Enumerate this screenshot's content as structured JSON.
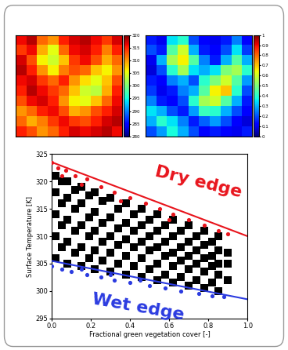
{
  "chart_data": [
    {
      "type": "heatmap",
      "tick_labels": false,
      "cells": [
        [
          316,
          318,
          312,
          310,
          315,
          317,
          318,
          316,
          314,
          317
        ],
        [
          314,
          316,
          309,
          305,
          312,
          316,
          317,
          315,
          311,
          315
        ],
        [
          317,
          313,
          306,
          304,
          308,
          314,
          316,
          313,
          309,
          312
        ],
        [
          318,
          315,
          310,
          306,
          311,
          313,
          312,
          308,
          306,
          310
        ],
        [
          316,
          317,
          314,
          312,
          315,
          310,
          307,
          305,
          308,
          313
        ],
        [
          315,
          318,
          316,
          314,
          312,
          308,
          304,
          303,
          309,
          315
        ],
        [
          313,
          316,
          317,
          315,
          310,
          306,
          305,
          308,
          312,
          316
        ],
        [
          310,
          312,
          315,
          316,
          313,
          309,
          310,
          313,
          315,
          317
        ],
        [
          312,
          309,
          311,
          314,
          316,
          314,
          313,
          315,
          317,
          318
        ],
        [
          315,
          313,
          310,
          312,
          315,
          317,
          316,
          317,
          318,
          316
        ]
      ],
      "colorbar_range": [
        280,
        320
      ],
      "colorbar_ticks": [
        280,
        285,
        290,
        295,
        300,
        305,
        310,
        315,
        320
      ]
    },
    {
      "type": "heatmap",
      "tick_labels": false,
      "cells": [
        [
          0.15,
          0.1,
          0.35,
          0.4,
          0.2,
          0.12,
          0.1,
          0.15,
          0.25,
          0.12
        ],
        [
          0.2,
          0.15,
          0.45,
          0.6,
          0.3,
          0.15,
          0.12,
          0.2,
          0.35,
          0.18
        ],
        [
          0.1,
          0.3,
          0.55,
          0.65,
          0.45,
          0.25,
          0.15,
          0.3,
          0.45,
          0.3
        ],
        [
          0.08,
          0.2,
          0.4,
          0.55,
          0.35,
          0.3,
          0.35,
          0.5,
          0.55,
          0.4
        ],
        [
          0.15,
          0.12,
          0.25,
          0.3,
          0.2,
          0.4,
          0.5,
          0.6,
          0.45,
          0.28
        ],
        [
          0.18,
          0.1,
          0.15,
          0.25,
          0.3,
          0.45,
          0.65,
          0.7,
          0.4,
          0.2
        ],
        [
          0.25,
          0.15,
          0.12,
          0.2,
          0.4,
          0.55,
          0.6,
          0.45,
          0.3,
          0.15
        ],
        [
          0.35,
          0.3,
          0.2,
          0.15,
          0.28,
          0.42,
          0.4,
          0.3,
          0.2,
          0.12
        ],
        [
          0.3,
          0.4,
          0.35,
          0.25,
          0.15,
          0.22,
          0.28,
          0.2,
          0.12,
          0.08
        ],
        [
          0.2,
          0.28,
          0.38,
          0.3,
          0.2,
          0.12,
          0.15,
          0.12,
          0.1,
          0.15
        ]
      ],
      "colorbar_range": [
        0,
        1
      ],
      "colorbar_ticks": [
        0,
        0.1,
        0.2,
        0.3,
        0.4,
        0.5,
        0.6,
        0.7,
        0.8,
        0.9,
        1
      ]
    },
    {
      "type": "scatter",
      "x_label": "Fractional green vegetation cover [-]",
      "y_label": "Surface Temperature [K]",
      "xlim": [
        0,
        1
      ],
      "ylim": [
        295,
        325
      ],
      "xticks": [
        {
          "value": 0,
          "label": "0.0"
        },
        0.2,
        0.4,
        0.6,
        0.8,
        {
          "value": 1,
          "label": "1.0"
        }
      ],
      "yticks": [
        295,
        300,
        305,
        310,
        315,
        320,
        325
      ],
      "annotations": [
        {
          "text": "Dry edge",
          "color": "#e8141c"
        },
        {
          "text": "Wet edge",
          "color": "#2b3be0"
        }
      ],
      "series": [
        {
          "type": "scatter",
          "color": "#000000",
          "marker": "square",
          "x": [
            0.02,
            0.02,
            0.02,
            0.02,
            0.02,
            0.08,
            0.08,
            0.08,
            0.08,
            0.08,
            0.15,
            0.15,
            0.15,
            0.15,
            0.15,
            0.22,
            0.22,
            0.22,
            0.22,
            0.22,
            0.3,
            0.3,
            0.3,
            0.3,
            0.3,
            0.38,
            0.38,
            0.38,
            0.38,
            0.38,
            0.46,
            0.46,
            0.46,
            0.46,
            0.46,
            0.54,
            0.54,
            0.54,
            0.54,
            0.54,
            0.62,
            0.62,
            0.62,
            0.62,
            0.62,
            0.7,
            0.7,
            0.7,
            0.7,
            0.7,
            0.78,
            0.78,
            0.78,
            0.78,
            0.78,
            0.85,
            0.85,
            0.85,
            0.85,
            0.85,
            0.9,
            0.9,
            0.9,
            0.05,
            0.05,
            0.05,
            0.05,
            0.12,
            0.12,
            0.12,
            0.12,
            0.19,
            0.19,
            0.19,
            0.19,
            0.26,
            0.26,
            0.26,
            0.26,
            0.34,
            0.34,
            0.34,
            0.34,
            0.42,
            0.42,
            0.42,
            0.42,
            0.5,
            0.5,
            0.5,
            0.5,
            0.58,
            0.58,
            0.58,
            0.58,
            0.66,
            0.66,
            0.66,
            0.66,
            0.74,
            0.74,
            0.74,
            0.74,
            0.82,
            0.82,
            0.82,
            0.82
          ],
          "values": [
            306,
            310,
            314,
            318,
            321,
            305,
            309,
            313,
            317,
            320,
            304.5,
            308,
            312,
            316,
            319,
            304,
            307.5,
            311,
            314.5,
            318,
            303.5,
            307,
            310,
            313.5,
            317,
            303,
            306.5,
            309.5,
            312.5,
            316,
            302.5,
            306,
            309,
            312,
            315,
            302,
            305,
            308,
            311,
            314,
            301.5,
            304.5,
            307,
            310,
            313,
            301,
            304,
            306.5,
            309,
            312,
            300.5,
            303.5,
            306,
            308.5,
            311,
            300,
            303,
            305,
            307.5,
            310,
            302,
            305,
            307,
            308,
            312,
            316,
            320,
            307,
            311,
            315,
            318.5,
            306,
            310,
            313.5,
            317.5,
            305.5,
            309,
            312.5,
            316.5,
            305,
            308.5,
            311.5,
            315,
            304.5,
            308,
            311,
            314,
            304,
            307.5,
            310,
            313,
            303,
            306.5,
            309,
            312,
            302.5,
            305.5,
            308,
            311,
            302,
            305,
            307.5,
            310,
            301.5,
            304.5,
            306.5,
            309
          ]
        },
        {
          "type": "scatter",
          "color": "#e8141c",
          "marker": "circle",
          "x": [
            0.0,
            0.03,
            0.07,
            0.12,
            0.18,
            0.25,
            0.32,
            0.4,
            0.48,
            0.55,
            0.62,
            0.7,
            0.78,
            0.85,
            0.9,
            0.05,
            0.15,
            0.35,
            0.6
          ],
          "values": [
            323.5,
            322.5,
            322,
            321,
            320.5,
            319,
            318,
            317,
            316,
            315,
            314,
            313,
            312,
            311,
            310.5,
            321,
            319.5,
            316.5,
            313
          ]
        },
        {
          "type": "scatter",
          "color": "#2b3be0",
          "marker": "circle",
          "x": [
            0.0,
            0.05,
            0.1,
            0.18,
            0.25,
            0.32,
            0.4,
            0.5,
            0.58,
            0.66,
            0.75,
            0.82,
            0.88,
            0.15,
            0.3,
            0.45
          ],
          "values": [
            304.5,
            304,
            303.5,
            303,
            302.5,
            302,
            301.5,
            301,
            300.5,
            300,
            299.5,
            299.2,
            299,
            304,
            303,
            302
          ]
        },
        {
          "type": "line",
          "color": "#e8141c",
          "line_style": "solid",
          "x": [
            0,
            1
          ],
          "values": [
            323.5,
            310
          ]
        },
        {
          "type": "line",
          "color": "#2b3be0",
          "line_style": "solid",
          "x": [
            0,
            1
          ],
          "values": [
            305.5,
            298.5
          ]
        }
      ]
    }
  ]
}
